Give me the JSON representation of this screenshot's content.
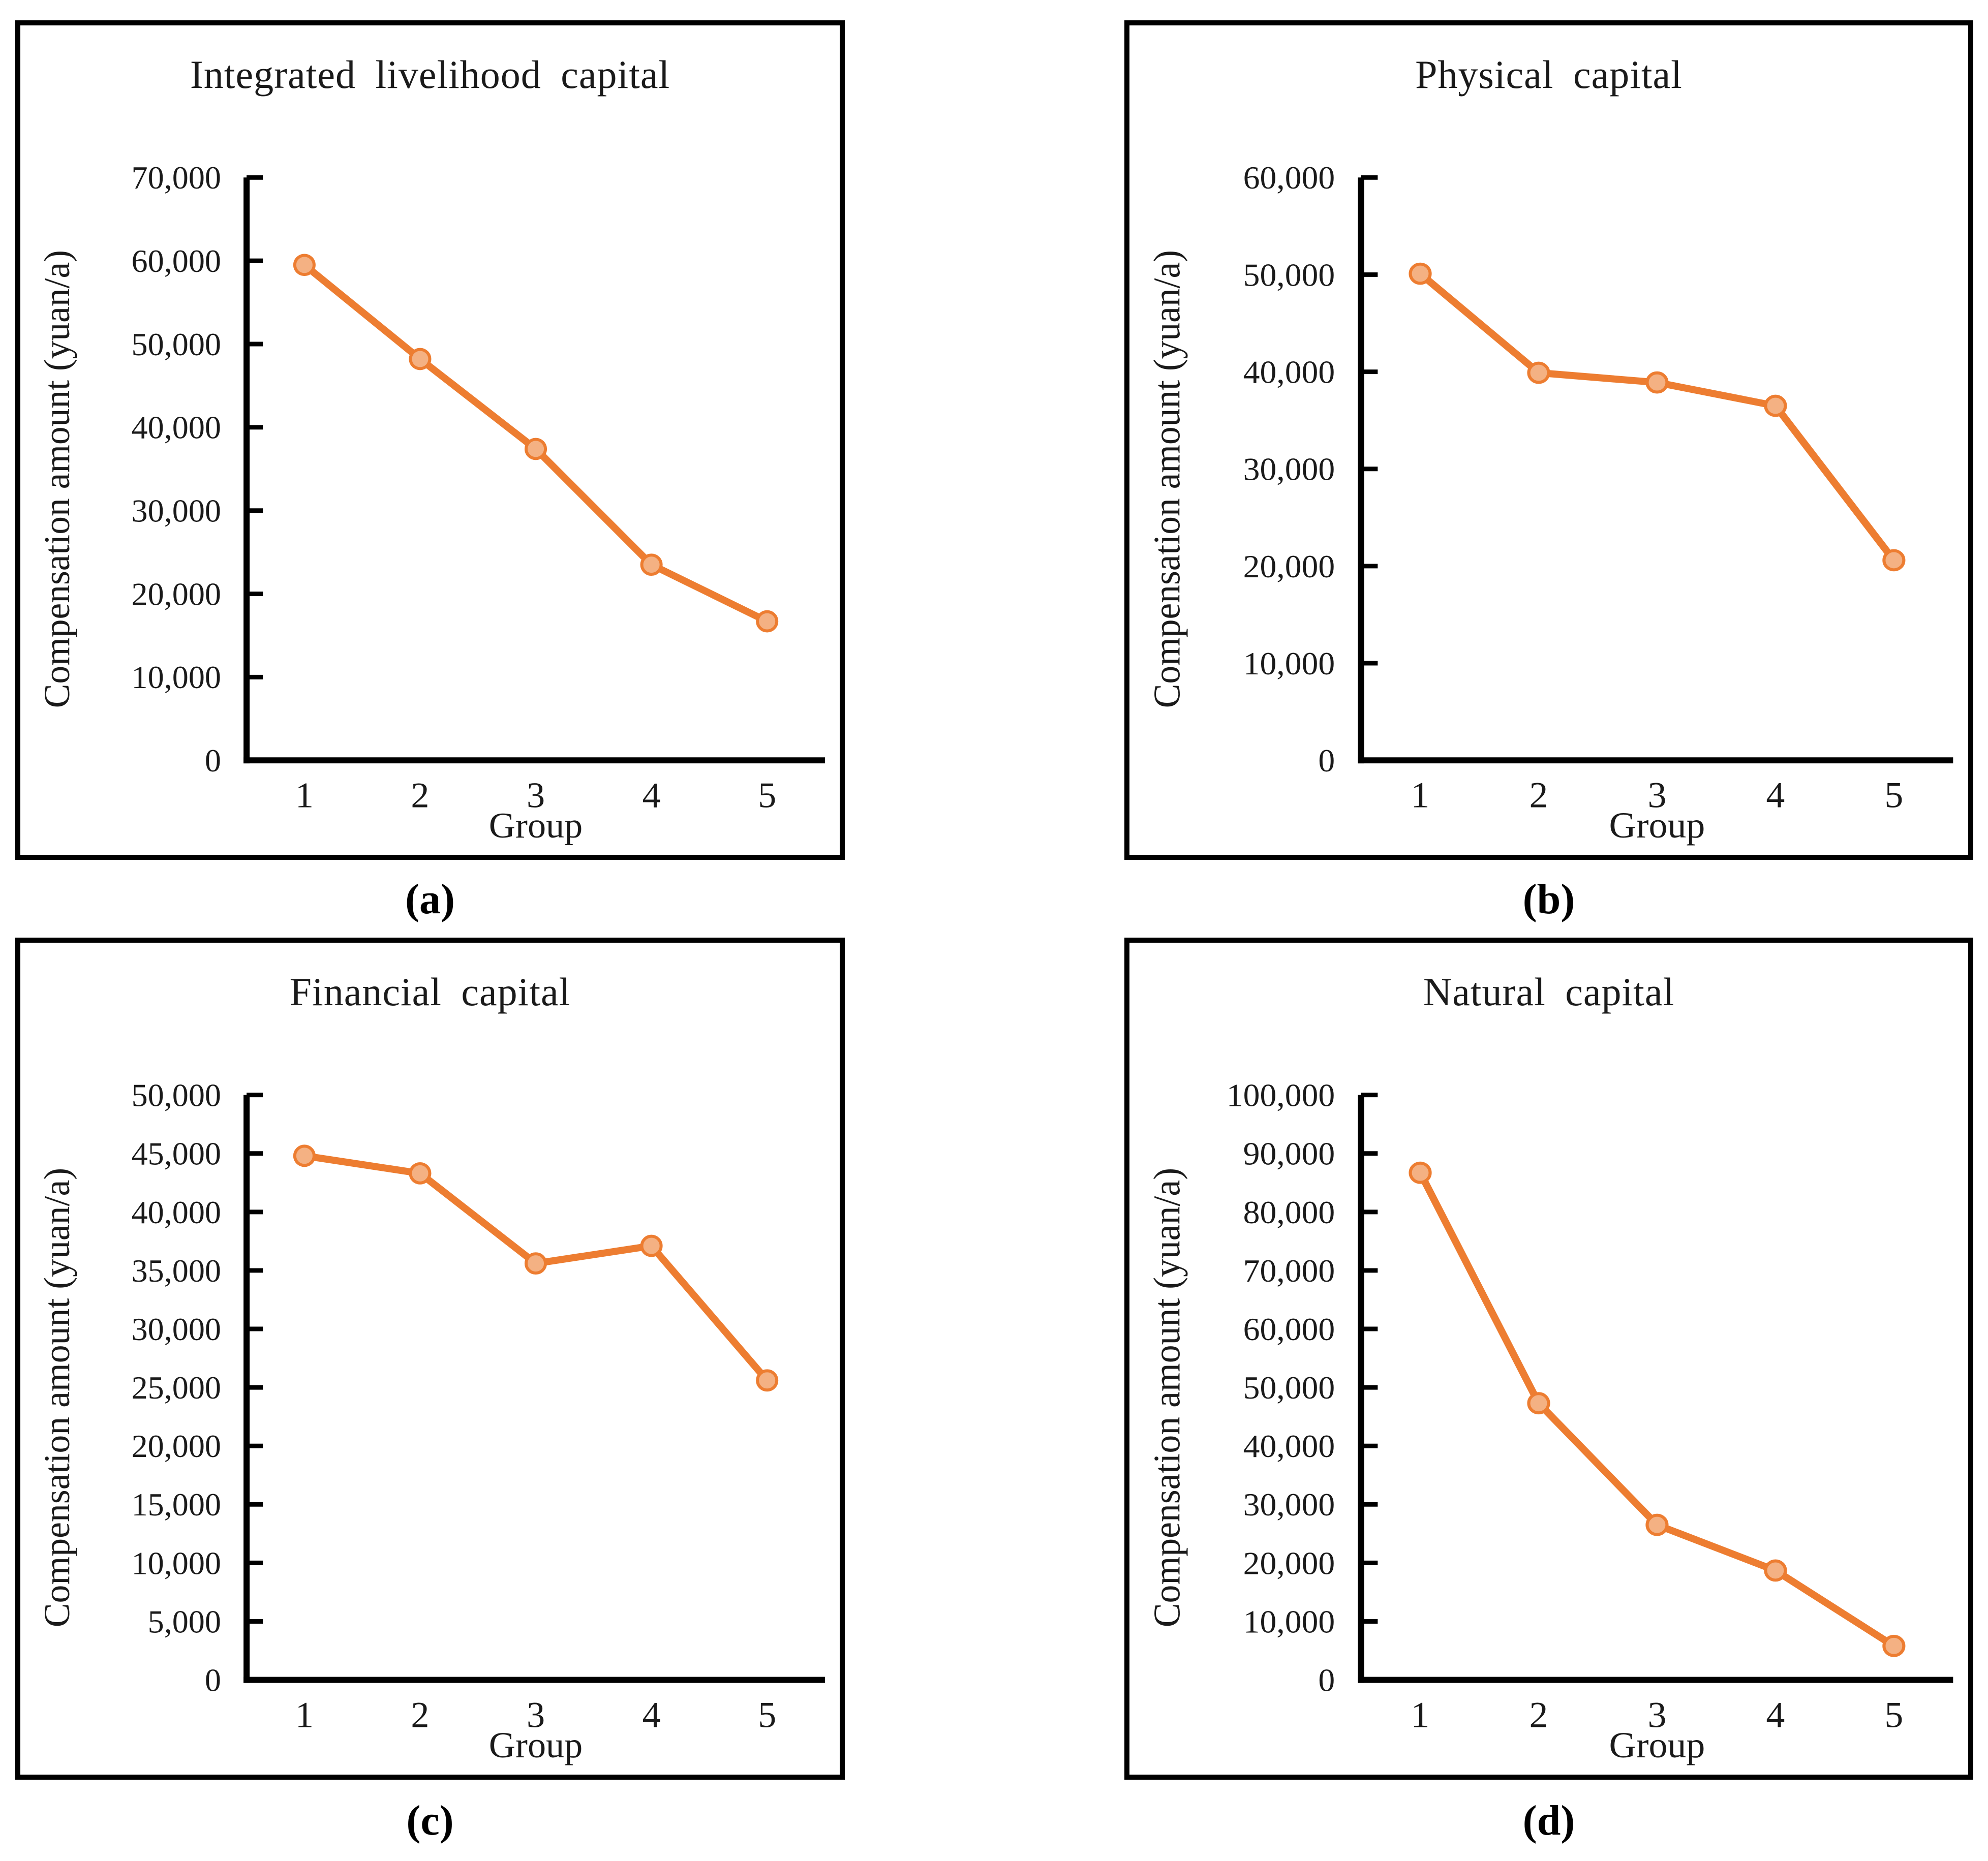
{
  "figure": {
    "description": "Four-panel line chart figure of compensation amounts by group",
    "xlabel_shared": "Group",
    "ylabel_shared": "Compensation amount (yuan/a)"
  },
  "colors": {
    "line": "#ED7D31",
    "marker_fill": "#F4B183",
    "axis": "#000000",
    "text": "#1a1a1a",
    "panel_border": "#000000",
    "background": "#FFFFFF"
  },
  "chart_data": [
    {
      "type": "line",
      "panel_label": "(a)",
      "title": "Integrated livelihood capital",
      "xlabel": "Group",
      "ylabel": "Compensation amount (yuan/a)",
      "categories": [
        "1",
        "2",
        "3",
        "4",
        "5"
      ],
      "values": [
        59500,
        48200,
        37400,
        23500,
        16700
      ],
      "ylim": [
        0,
        70000
      ],
      "ytick_interval": 10000,
      "grid": false,
      "legend": "none",
      "marker": "circle"
    },
    {
      "type": "line",
      "panel_label": "(b)",
      "title": "Physical capital",
      "xlabel": "Group",
      "ylabel": "Compensation amount (yuan/a)",
      "categories": [
        "1",
        "2",
        "3",
        "4",
        "5"
      ],
      "values": [
        50100,
        39900,
        38900,
        36500,
        20600
      ],
      "ylim": [
        0,
        60000
      ],
      "ytick_interval": 10000,
      "grid": false,
      "legend": "none",
      "marker": "circle"
    },
    {
      "type": "line",
      "panel_label": "(c)",
      "title": "Financial capital",
      "xlabel": "Group",
      "ylabel": "Compensation amount (yuan/a)",
      "categories": [
        "1",
        "2",
        "3",
        "4",
        "5"
      ],
      "values": [
        44800,
        43300,
        35600,
        37100,
        25600
      ],
      "ylim": [
        0,
        50000
      ],
      "ytick_interval": 5000,
      "grid": false,
      "legend": "none",
      "marker": "circle"
    },
    {
      "type": "line",
      "panel_label": "(d)",
      "title": "Natural capital",
      "xlabel": "Group",
      "ylabel": "Compensation amount (yuan/a)",
      "categories": [
        "1",
        "2",
        "3",
        "4",
        "5"
      ],
      "values": [
        86700,
        47300,
        26500,
        18700,
        5800
      ],
      "ylim": [
        0,
        100000
      ],
      "ytick_interval": 10000,
      "grid": false,
      "legend": "none",
      "marker": "circle"
    }
  ]
}
